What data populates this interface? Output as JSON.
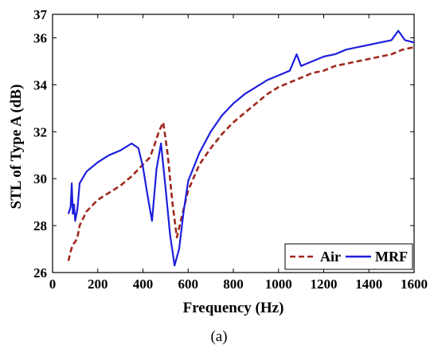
{
  "caption": "(a)",
  "chart_data": {
    "type": "line",
    "title": "",
    "xlabel": "Frequency (Hz)",
    "ylabel": "STL of Type A (dB)",
    "xlim": [
      0,
      1600
    ],
    "ylim": [
      26,
      37
    ],
    "xticks": [
      0,
      200,
      400,
      600,
      800,
      1000,
      1200,
      1400,
      1600
    ],
    "yticks": [
      26,
      28,
      30,
      32,
      34,
      36,
      37
    ],
    "grid": false,
    "legend_position": "bottom-right",
    "series": [
      {
        "name": "Air",
        "color": "#a0281e",
        "style": "dashed",
        "x": [
          70,
          80,
          90,
          100,
          110,
          120,
          150,
          200,
          250,
          300,
          350,
          400,
          430,
          450,
          470,
          490,
          510,
          530,
          550,
          570,
          600,
          650,
          700,
          750,
          800,
          850,
          900,
          950,
          1000,
          1050,
          1100,
          1150,
          1200,
          1250,
          1300,
          1350,
          1400,
          1450,
          1500,
          1550,
          1600
        ],
        "y": [
          26.5,
          26.9,
          27.2,
          27.3,
          27.5,
          28.0,
          28.6,
          29.1,
          29.4,
          29.7,
          30.1,
          30.6,
          30.9,
          31.4,
          32.0,
          32.4,
          31.0,
          29.0,
          27.5,
          28.3,
          29.5,
          30.6,
          31.3,
          31.9,
          32.4,
          32.8,
          33.2,
          33.6,
          33.9,
          34.1,
          34.3,
          34.5,
          34.6,
          34.8,
          34.9,
          35.0,
          35.1,
          35.2,
          35.3,
          35.5,
          35.6
        ]
      },
      {
        "name": "MRF",
        "color": "#1f1fdd",
        "style": "solid",
        "x": [
          70,
          80,
          85,
          90,
          95,
          100,
          110,
          120,
          150,
          200,
          250,
          300,
          350,
          380,
          400,
          420,
          440,
          460,
          480,
          500,
          520,
          540,
          560,
          580,
          600,
          650,
          700,
          750,
          800,
          850,
          900,
          950,
          1000,
          1050,
          1080,
          1100,
          1150,
          1200,
          1250,
          1300,
          1350,
          1400,
          1450,
          1500,
          1530,
          1560,
          1600
        ],
        "y": [
          28.5,
          28.8,
          29.8,
          28.5,
          28.9,
          28.2,
          28.7,
          29.8,
          30.3,
          30.7,
          31.0,
          31.2,
          31.5,
          31.3,
          30.5,
          29.3,
          28.2,
          30.4,
          31.5,
          29.6,
          27.6,
          26.3,
          27.0,
          28.6,
          29.9,
          31.1,
          32.0,
          32.7,
          33.2,
          33.6,
          33.9,
          34.2,
          34.4,
          34.6,
          35.3,
          34.8,
          35.0,
          35.2,
          35.3,
          35.5,
          35.6,
          35.7,
          35.8,
          35.9,
          36.3,
          35.9,
          35.8
        ]
      }
    ]
  }
}
